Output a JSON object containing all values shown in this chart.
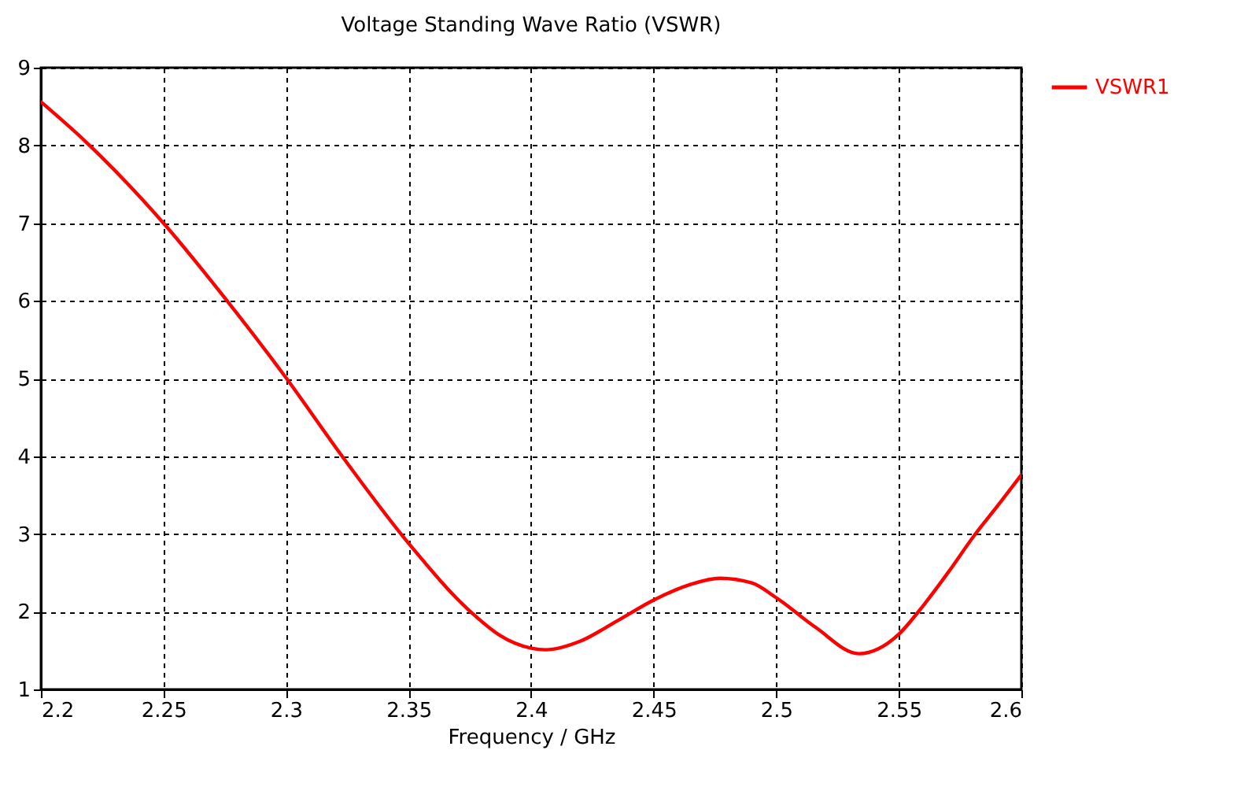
{
  "chart_data": {
    "type": "line",
    "title": "Voltage Standing Wave Ratio (VSWR)",
    "xlabel": "Frequency / GHz",
    "x": [
      2.2,
      2.2182,
      2.25,
      2.2737,
      2.3,
      2.3229,
      2.35,
      2.3763,
      2.387,
      2.4,
      2.406,
      2.42,
      2.435,
      2.45,
      2.465,
      2.477,
      2.49,
      2.5,
      2.516,
      2.5337,
      2.55,
      2.558,
      2.57,
      2.581,
      2.59,
      2.6
    ],
    "series": [
      {
        "name": "VSWR1",
        "color": "#ff0000",
        "values": [
          8.56,
          8.05,
          7.0,
          6.09,
          5.01,
          4.0,
          2.88,
          1.97,
          1.7,
          1.53,
          1.51,
          1.62,
          1.88,
          2.15,
          2.35,
          2.43,
          2.37,
          2.18,
          1.8,
          1.46,
          1.71,
          2.0,
          2.5,
          2.99,
          3.35,
          3.76
        ]
      }
    ],
    "xlim": [
      2.2,
      2.6
    ],
    "xticks": [
      2.2,
      2.25,
      2.3,
      2.35,
      2.4,
      2.45,
      2.5,
      2.55,
      2.6
    ],
    "ylim": [
      1,
      9
    ],
    "yticks": [
      1,
      2,
      3,
      4,
      5,
      6,
      7,
      8,
      9
    ],
    "grid": true,
    "legend": "top right",
    "marker": "none",
    "line_style": "solid"
  }
}
